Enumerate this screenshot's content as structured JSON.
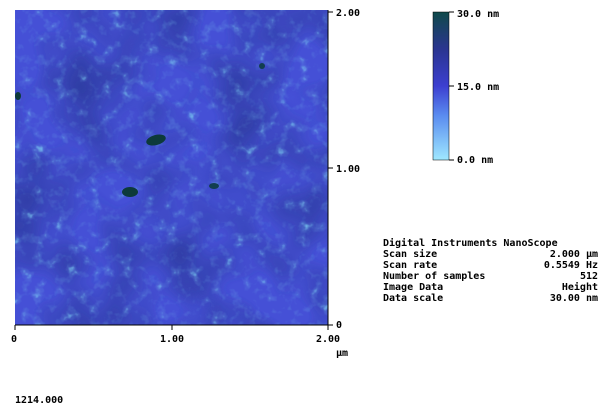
{
  "image": {
    "y_axis_labels": [
      "2.00",
      "1.00",
      "0"
    ],
    "x_axis_labels": [
      "0",
      "1.00",
      "2.00"
    ],
    "x_unit": "µm"
  },
  "color_scale": {
    "labels": [
      "30.0 nm",
      "15.0 nm",
      "0.0 nm"
    ]
  },
  "info": {
    "title": "Digital Instruments NanoScope",
    "rows": [
      [
        "Scan size",
        "2.000 µm"
      ],
      [
        "Scan rate",
        "0.5549 Hz"
      ],
      [
        "Number of samples",
        "512"
      ],
      [
        "Image Data",
        "Height"
      ],
      [
        "Data scale",
        "30.00 nm"
      ]
    ]
  },
  "footer": "1214.000"
}
